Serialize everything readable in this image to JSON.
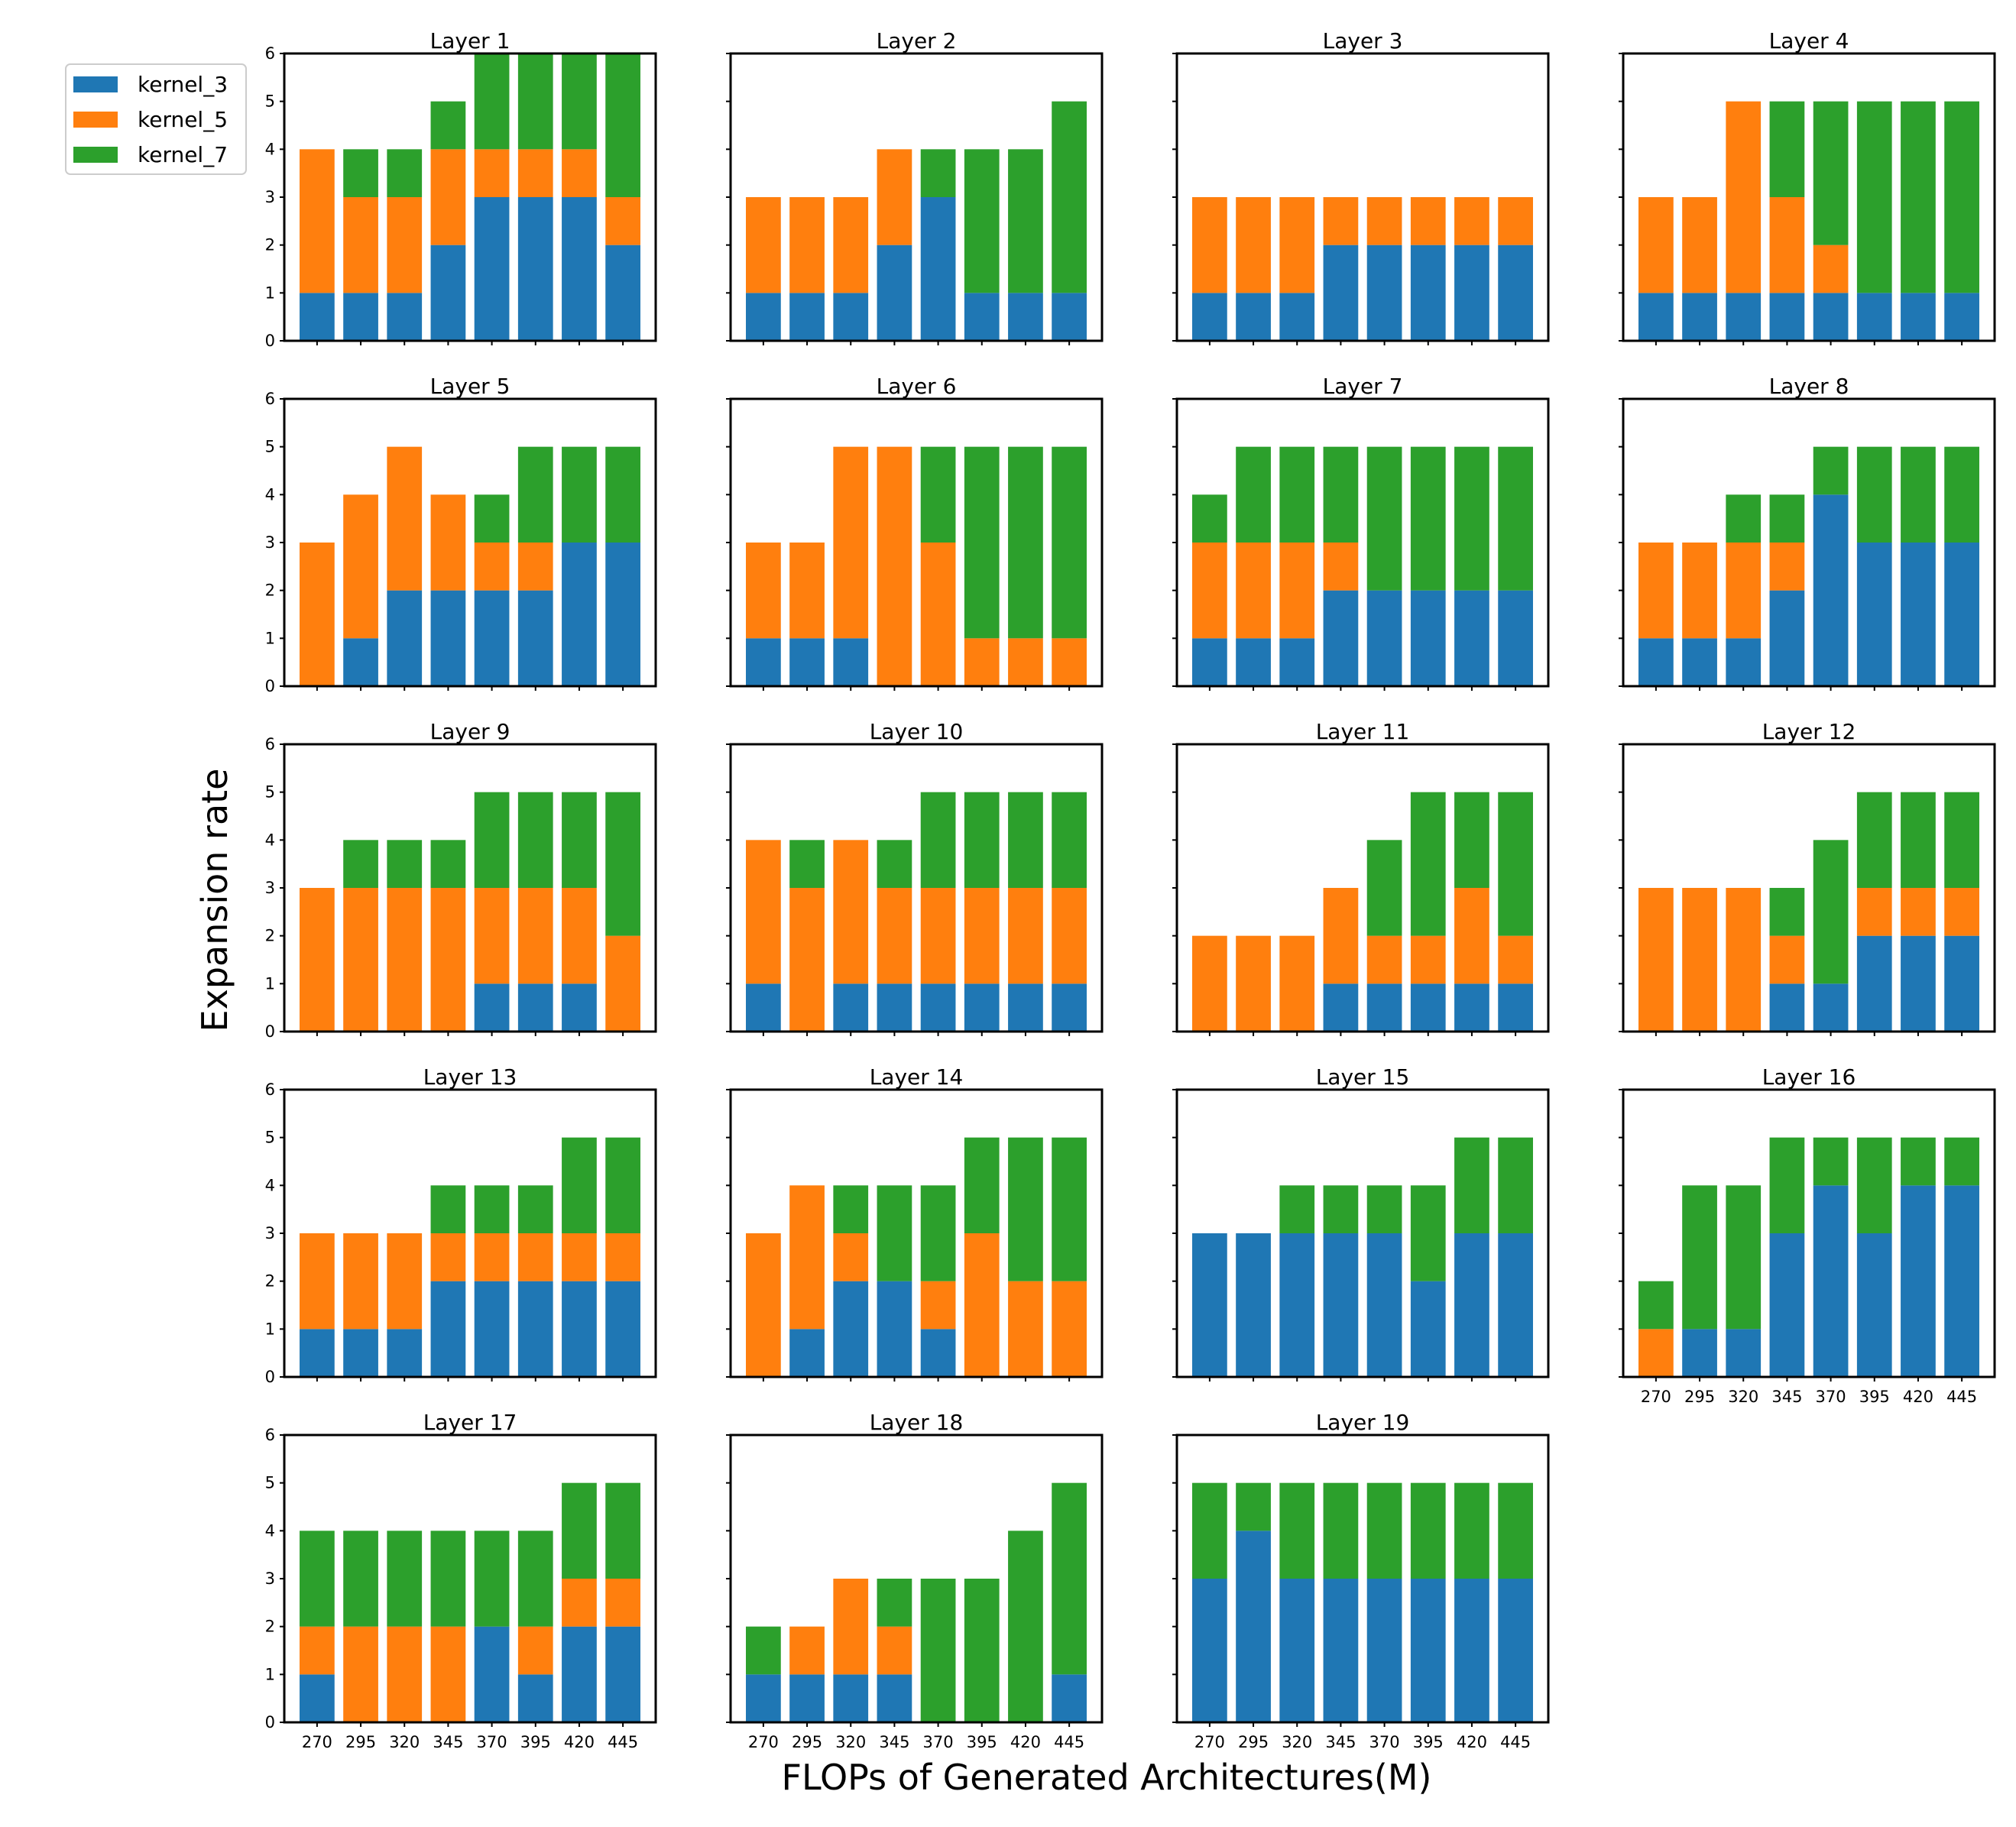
{
  "chart_data": {
    "type": "bar",
    "stacked": true,
    "xlabel": "FLOPs of Generated Architectures(M)",
    "ylabel": "Expansion rate",
    "categories": [
      "270",
      "295",
      "320",
      "345",
      "370",
      "395",
      "420",
      "445"
    ],
    "ylim": [
      0,
      6
    ],
    "yticks": [
      0,
      1,
      2,
      3,
      4,
      5,
      6
    ],
    "grid": false,
    "legend_position": "top-left",
    "series_names": [
      "kernel_3",
      "kernel_5",
      "kernel_7"
    ],
    "colors": {
      "kernel_3": "#1f77b4",
      "kernel_5": "#ff7f0e",
      "kernel_7": "#2ca02c"
    },
    "panels": [
      {
        "title": "Layer 1",
        "series": [
          {
            "name": "kernel_3",
            "values": [
              1,
              1,
              1,
              2,
              3,
              3,
              3,
              2
            ]
          },
          {
            "name": "kernel_5",
            "values": [
              3,
              2,
              2,
              2,
              1,
              1,
              1,
              1
            ]
          },
          {
            "name": "kernel_7",
            "values": [
              0,
              1,
              1,
              1,
              2,
              2,
              2,
              3
            ]
          }
        ]
      },
      {
        "title": "Layer 2",
        "series": [
          {
            "name": "kernel_3",
            "values": [
              1,
              1,
              1,
              2,
              3,
              1,
              1,
              1
            ]
          },
          {
            "name": "kernel_5",
            "values": [
              2,
              2,
              2,
              2,
              0,
              0,
              0,
              0
            ]
          },
          {
            "name": "kernel_7",
            "values": [
              0,
              0,
              0,
              0,
              1,
              3,
              3,
              4
            ]
          }
        ]
      },
      {
        "title": "Layer 3",
        "series": [
          {
            "name": "kernel_3",
            "values": [
              1,
              1,
              1,
              2,
              2,
              2,
              2,
              2
            ]
          },
          {
            "name": "kernel_5",
            "values": [
              2,
              2,
              2,
              1,
              1,
              1,
              1,
              1
            ]
          },
          {
            "name": "kernel_7",
            "values": [
              0,
              0,
              0,
              0,
              0,
              0,
              0,
              0
            ]
          }
        ]
      },
      {
        "title": "Layer 4",
        "series": [
          {
            "name": "kernel_3",
            "values": [
              1,
              1,
              1,
              1,
              1,
              1,
              1,
              1
            ]
          },
          {
            "name": "kernel_5",
            "values": [
              2,
              2,
              4,
              2,
              1,
              0,
              0,
              0
            ]
          },
          {
            "name": "kernel_7",
            "values": [
              0,
              0,
              0,
              2,
              3,
              4,
              4,
              4
            ]
          }
        ]
      },
      {
        "title": "Layer 5",
        "series": [
          {
            "name": "kernel_3",
            "values": [
              0,
              1,
              2,
              2,
              2,
              2,
              3,
              3
            ]
          },
          {
            "name": "kernel_5",
            "values": [
              3,
              3,
              3,
              2,
              1,
              1,
              0,
              0
            ]
          },
          {
            "name": "kernel_7",
            "values": [
              0,
              0,
              0,
              0,
              1,
              2,
              2,
              2
            ]
          }
        ]
      },
      {
        "title": "Layer 6",
        "series": [
          {
            "name": "kernel_3",
            "values": [
              1,
              1,
              1,
              0,
              0,
              0,
              0,
              0
            ]
          },
          {
            "name": "kernel_5",
            "values": [
              2,
              2,
              4,
              5,
              3,
              1,
              1,
              1
            ]
          },
          {
            "name": "kernel_7",
            "values": [
              0,
              0,
              0,
              0,
              2,
              4,
              4,
              4
            ]
          }
        ]
      },
      {
        "title": "Layer 7",
        "series": [
          {
            "name": "kernel_3",
            "values": [
              1,
              1,
              1,
              2,
              2,
              2,
              2,
              2
            ]
          },
          {
            "name": "kernel_5",
            "values": [
              2,
              2,
              2,
              1,
              0,
              0,
              0,
              0
            ]
          },
          {
            "name": "kernel_7",
            "values": [
              1,
              2,
              2,
              2,
              3,
              3,
              3,
              3
            ]
          }
        ]
      },
      {
        "title": "Layer 8",
        "series": [
          {
            "name": "kernel_3",
            "values": [
              1,
              1,
              1,
              2,
              4,
              3,
              3,
              3
            ]
          },
          {
            "name": "kernel_5",
            "values": [
              2,
              2,
              2,
              1,
              0,
              0,
              0,
              0
            ]
          },
          {
            "name": "kernel_7",
            "values": [
              0,
              0,
              1,
              1,
              1,
              2,
              2,
              2
            ]
          }
        ]
      },
      {
        "title": "Layer 9",
        "series": [
          {
            "name": "kernel_3",
            "values": [
              0,
              0,
              0,
              0,
              1,
              1,
              1,
              0
            ]
          },
          {
            "name": "kernel_5",
            "values": [
              3,
              3,
              3,
              3,
              2,
              2,
              2,
              2
            ]
          },
          {
            "name": "kernel_7",
            "values": [
              0,
              1,
              1,
              1,
              2,
              2,
              2,
              3
            ]
          }
        ]
      },
      {
        "title": "Layer 10",
        "series": [
          {
            "name": "kernel_3",
            "values": [
              1,
              0,
              1,
              1,
              1,
              1,
              1,
              1
            ]
          },
          {
            "name": "kernel_5",
            "values": [
              3,
              3,
              3,
              2,
              2,
              2,
              2,
              2
            ]
          },
          {
            "name": "kernel_7",
            "values": [
              0,
              1,
              0,
              1,
              2,
              2,
              2,
              2
            ]
          }
        ]
      },
      {
        "title": "Layer 11",
        "series": [
          {
            "name": "kernel_3",
            "values": [
              0,
              0,
              0,
              1,
              1,
              1,
              1,
              1
            ]
          },
          {
            "name": "kernel_5",
            "values": [
              2,
              2,
              2,
              2,
              1,
              1,
              2,
              1
            ]
          },
          {
            "name": "kernel_7",
            "values": [
              0,
              0,
              0,
              0,
              2,
              3,
              2,
              3
            ]
          }
        ]
      },
      {
        "title": "Layer 12",
        "series": [
          {
            "name": "kernel_3",
            "values": [
              0,
              0,
              0,
              1,
              1,
              2,
              2,
              2
            ]
          },
          {
            "name": "kernel_5",
            "values": [
              3,
              3,
              3,
              1,
              0,
              1,
              1,
              1
            ]
          },
          {
            "name": "kernel_7",
            "values": [
              0,
              0,
              0,
              1,
              3,
              2,
              2,
              2
            ]
          }
        ]
      },
      {
        "title": "Layer 13",
        "series": [
          {
            "name": "kernel_3",
            "values": [
              1,
              1,
              1,
              2,
              2,
              2,
              2,
              2
            ]
          },
          {
            "name": "kernel_5",
            "values": [
              2,
              2,
              2,
              1,
              1,
              1,
              1,
              1
            ]
          },
          {
            "name": "kernel_7",
            "values": [
              0,
              0,
              0,
              1,
              1,
              1,
              2,
              2
            ]
          }
        ]
      },
      {
        "title": "Layer 14",
        "series": [
          {
            "name": "kernel_3",
            "values": [
              0,
              1,
              2,
              2,
              1,
              0,
              0,
              0
            ]
          },
          {
            "name": "kernel_5",
            "values": [
              3,
              3,
              1,
              0,
              1,
              3,
              2,
              2
            ]
          },
          {
            "name": "kernel_7",
            "values": [
              0,
              0,
              1,
              2,
              2,
              2,
              3,
              3
            ]
          }
        ]
      },
      {
        "title": "Layer 15",
        "series": [
          {
            "name": "kernel_3",
            "values": [
              3,
              3,
              3,
              3,
              3,
              2,
              3,
              3
            ]
          },
          {
            "name": "kernel_5",
            "values": [
              0,
              0,
              0,
              0,
              0,
              0,
              0,
              0
            ]
          },
          {
            "name": "kernel_7",
            "values": [
              0,
              0,
              1,
              1,
              1,
              2,
              2,
              2
            ]
          }
        ]
      },
      {
        "title": "Layer 16",
        "series": [
          {
            "name": "kernel_3",
            "values": [
              0,
              1,
              1,
              3,
              4,
              3,
              4,
              4
            ]
          },
          {
            "name": "kernel_5",
            "values": [
              1,
              0,
              0,
              0,
              0,
              0,
              0,
              0
            ]
          },
          {
            "name": "kernel_7",
            "values": [
              1,
              3,
              3,
              2,
              1,
              2,
              1,
              1
            ]
          }
        ]
      },
      {
        "title": "Layer 17",
        "series": [
          {
            "name": "kernel_3",
            "values": [
              1,
              0,
              0,
              0,
              2,
              1,
              2,
              2
            ]
          },
          {
            "name": "kernel_5",
            "values": [
              1,
              2,
              2,
              2,
              0,
              1,
              1,
              1
            ]
          },
          {
            "name": "kernel_7",
            "values": [
              2,
              2,
              2,
              2,
              2,
              2,
              2,
              2
            ]
          }
        ]
      },
      {
        "title": "Layer 18",
        "series": [
          {
            "name": "kernel_3",
            "values": [
              1,
              1,
              1,
              1,
              0,
              0,
              0,
              1
            ]
          },
          {
            "name": "kernel_5",
            "values": [
              0,
              1,
              2,
              1,
              0,
              0,
              0,
              0
            ]
          },
          {
            "name": "kernel_7",
            "values": [
              1,
              0,
              0,
              1,
              3,
              3,
              4,
              4
            ]
          }
        ]
      },
      {
        "title": "Layer 19",
        "series": [
          {
            "name": "kernel_3",
            "values": [
              3,
              4,
              3,
              3,
              3,
              3,
              3,
              3
            ]
          },
          {
            "name": "kernel_5",
            "values": [
              0,
              0,
              0,
              0,
              0,
              0,
              0,
              0
            ]
          },
          {
            "name": "kernel_7",
            "values": [
              2,
              1,
              2,
              2,
              2,
              2,
              2,
              2
            ]
          }
        ]
      }
    ]
  }
}
